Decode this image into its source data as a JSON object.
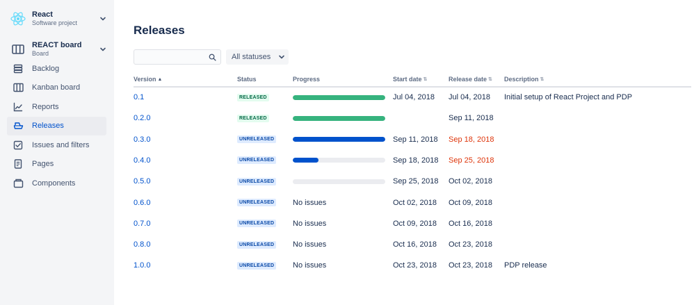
{
  "project": {
    "name": "React",
    "type": "Software project"
  },
  "board": {
    "name": "REACT board",
    "type": "Board"
  },
  "nav": [
    {
      "label": "Backlog",
      "icon": "backlog-icon"
    },
    {
      "label": "Kanban board",
      "icon": "kanban-board-icon"
    },
    {
      "label": "Reports",
      "icon": "reports-icon"
    },
    {
      "label": "Releases",
      "icon": "releases-icon",
      "active": true
    },
    {
      "label": "Issues and filters",
      "icon": "issues-icon"
    },
    {
      "label": "Pages",
      "icon": "pages-icon"
    },
    {
      "label": "Components",
      "icon": "components-icon"
    }
  ],
  "page": {
    "title": "Releases"
  },
  "search": {
    "value": "",
    "placeholder": ""
  },
  "filter": {
    "status_label": "All statuses"
  },
  "columns": {
    "version": "Version",
    "status": "Status",
    "progress": "Progress",
    "start_date": "Start date",
    "release_date": "Release date",
    "description": "Description"
  },
  "colors": {
    "released": "#36b37e",
    "unreleased": "#0052cc",
    "overdue": "#de350b",
    "track": "#ebecf0"
  },
  "releases": [
    {
      "version": "0.1",
      "status": "RELEASED",
      "progress": 1.0,
      "progress_text": "",
      "start_date": "Jul 04, 2018",
      "release_date": "Jul 04, 2018",
      "release_overdue": false,
      "description": "Initial setup of React Project and PDP"
    },
    {
      "version": "0.2.0",
      "status": "RELEASED",
      "progress": 1.0,
      "progress_text": "",
      "start_date": "",
      "release_date": "Sep 11, 2018",
      "release_overdue": false,
      "description": ""
    },
    {
      "version": "0.3.0",
      "status": "UNRELEASED",
      "progress": 1.0,
      "progress_text": "",
      "start_date": "Sep 11, 2018",
      "release_date": "Sep 18, 2018",
      "release_overdue": true,
      "description": ""
    },
    {
      "version": "0.4.0",
      "status": "UNRELEASED",
      "progress": 0.28,
      "progress_text": "",
      "start_date": "Sep 18, 2018",
      "release_date": "Sep 25, 2018",
      "release_overdue": true,
      "description": ""
    },
    {
      "version": "0.5.0",
      "status": "UNRELEASED",
      "progress": 0,
      "progress_text": "",
      "start_date": "Sep 25, 2018",
      "release_date": "Oct 02, 2018",
      "release_overdue": false,
      "description": ""
    },
    {
      "version": "0.6.0",
      "status": "UNRELEASED",
      "progress": null,
      "progress_text": "No issues",
      "start_date": "Oct 02, 2018",
      "release_date": "Oct 09, 2018",
      "release_overdue": false,
      "description": ""
    },
    {
      "version": "0.7.0",
      "status": "UNRELEASED",
      "progress": null,
      "progress_text": "No issues",
      "start_date": "Oct 09, 2018",
      "release_date": "Oct 16, 2018",
      "release_overdue": false,
      "description": ""
    },
    {
      "version": "0.8.0",
      "status": "UNRELEASED",
      "progress": null,
      "progress_text": "No issues",
      "start_date": "Oct 16, 2018",
      "release_date": "Oct 23, 2018",
      "release_overdue": false,
      "description": ""
    },
    {
      "version": "1.0.0",
      "status": "UNRELEASED",
      "progress": null,
      "progress_text": "No issues",
      "start_date": "Oct 23, 2018",
      "release_date": "Oct 23, 2018",
      "release_overdue": false,
      "description": "PDP release"
    }
  ]
}
